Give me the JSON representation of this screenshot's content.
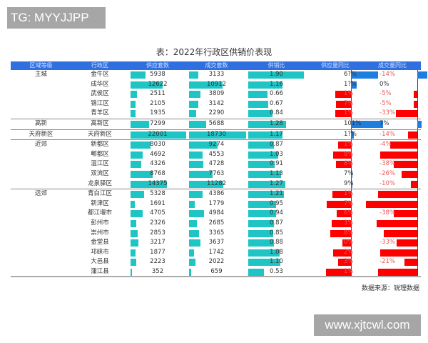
{
  "watermarks": {
    "top": "TG: MYYJJPP",
    "bottom": "www.xjtcwl.com"
  },
  "title": "表：2022年行政区供销价表现",
  "source": "数据来源：锐理数据",
  "colors": {
    "header_bg": "#2f6fe0",
    "teal_bar": "#1fc4c4",
    "blue_bar": "#1e7ee0",
    "red_bar": "#ff0000"
  },
  "headers": {
    "region": "区域等级",
    "district": "行政区",
    "supply": "供应套数",
    "deal": "成交套数",
    "ratio": "供销比",
    "supply_yoy": "供应量同比",
    "deal_yoy": "成交量同比"
  },
  "chart_data": {
    "type": "table",
    "title": "表：2022年行政区供销价表现",
    "columns": [
      "区域等级",
      "行政区",
      "供应套数",
      "成交套数",
      "供销比",
      "供应量同比",
      "成交量同比"
    ],
    "rows": [
      {
        "region": "主城",
        "district": "金牛区",
        "supply": 5938,
        "deal": 3133,
        "ratio": "1.90",
        "supply_yoy": "6?%",
        "deal_yoy": "-14%",
        "syoy_w": 38,
        "dyoy_w": 14
      },
      {
        "region": "",
        "district": "成华区",
        "supply": 12622,
        "deal": 10912,
        "ratio": "1.16",
        "supply_yoy": "1?%",
        "deal_yoy": "0%",
        "syoy_w": 8,
        "dyoy_w": 0
      },
      {
        "region": "",
        "district": "武侯区",
        "supply": 2511,
        "deal": 3809,
        "ratio": "0.66",
        "supply_yoy": "-?1%",
        "deal_yoy": "-5%",
        "syoy_w": -22,
        "dyoy_w": -5
      },
      {
        "region": "",
        "district": "锦江区",
        "supply": 2105,
        "deal": 3142,
        "ratio": "0.67",
        "supply_yoy": "-?7%",
        "deal_yoy": "-5%",
        "syoy_w": -21,
        "dyoy_w": -5
      },
      {
        "region": "",
        "district": "青羊区",
        "supply": 1935,
        "deal": 2290,
        "ratio": "0.84",
        "supply_yoy": "-?1%",
        "deal_yoy": "-33%",
        "syoy_w": -22,
        "dyoy_w": -30
      },
      {
        "region": "高新",
        "district": "高新区",
        "supply": 7299,
        "deal": 5688,
        "ratio": "1.28",
        "supply_yoy": "101%",
        "deal_yoy": "7%",
        "syoy_w": 45,
        "dyoy_w": 6,
        "sep": true
      },
      {
        "region": "天府新区",
        "district": "天府新区",
        "supply": 22001,
        "deal": 18730,
        "ratio": "1.17",
        "supply_yoy": "1?%",
        "deal_yoy": "-14%",
        "syoy_w": 4,
        "dyoy_w": -13,
        "sep": true
      },
      {
        "region": "近郊",
        "district": "新都区",
        "supply": 8030,
        "deal": 9274,
        "ratio": "0.87",
        "supply_yoy": "-?1%",
        "deal_yoy": "-4?%",
        "syoy_w": -18,
        "dyoy_w": -38,
        "sep": true
      },
      {
        "region": "",
        "district": "郫都区",
        "supply": 4692,
        "deal": 4553,
        "ratio": "1.03",
        "supply_yoy": "-?8%",
        "deal_yoy": "-??%",
        "syoy_w": -25,
        "dyoy_w": -52
      },
      {
        "region": "",
        "district": "温江区",
        "supply": 4326,
        "deal": 4728,
        "ratio": "0.91",
        "supply_yoy": "-?8%",
        "deal_yoy": "-38%",
        "syoy_w": -21,
        "dyoy_w": -33
      },
      {
        "region": "",
        "district": "双流区",
        "supply": 8768,
        "deal": 7763,
        "ratio": "1.13",
        "supply_yoy": "7%",
        "deal_yoy": "-26%",
        "syoy_w": 2,
        "dyoy_w": -22
      },
      {
        "region": "",
        "district": "龙泉驿区",
        "supply": 14375,
        "deal": 11282,
        "ratio": "1.27",
        "supply_yoy": "9%",
        "deal_yoy": "-10%",
        "syoy_w": 2,
        "dyoy_w": -9
      },
      {
        "region": "远郊",
        "district": "青白江区",
        "supply": 5328,
        "deal": 4386,
        "ratio": "1.21",
        "supply_yoy": "-?1%",
        "deal_yoy": "-??%",
        "syoy_w": -26,
        "dyoy_w": -55,
        "sep": true
      },
      {
        "region": "",
        "district": "新津区",
        "supply": 1691,
        "deal": 1779,
        "ratio": "0.95",
        "supply_yoy": "-?7%",
        "deal_yoy": "-??%",
        "syoy_w": -34,
        "dyoy_w": -72
      },
      {
        "region": "",
        "district": "都江堰市",
        "supply": 4705,
        "deal": 4984,
        "ratio": "0.94",
        "supply_yoy": "-?6%",
        "deal_yoy": "-38%",
        "syoy_w": -20,
        "dyoy_w": -33
      },
      {
        "region": "",
        "district": "彭州市",
        "supply": 2326,
        "deal": 2685,
        "ratio": "0.87",
        "supply_yoy": "-?3%",
        "deal_yoy": "-??%",
        "syoy_w": -27,
        "dyoy_w": -57
      },
      {
        "region": "",
        "district": "崇州市",
        "supply": 2853,
        "deal": 3365,
        "ratio": "0.85",
        "supply_yoy": "-?8%",
        "deal_yoy": "-??%",
        "syoy_w": -29,
        "dyoy_w": -47
      },
      {
        "region": "",
        "district": "金堂县",
        "supply": 3217,
        "deal": 3637,
        "ratio": "0.88",
        "supply_yoy": "-?0%",
        "deal_yoy": "-33%",
        "syoy_w": -12,
        "dyoy_w": -29
      },
      {
        "region": "",
        "district": "邛崃市",
        "supply": 1877,
        "deal": 1742,
        "ratio": "1.08",
        "supply_yoy": "-?2%",
        "deal_yoy": "-??%",
        "syoy_w": -25,
        "dyoy_w": -52
      },
      {
        "region": "",
        "district": "大邑县",
        "supply": 2223,
        "deal": 2022,
        "ratio": "1.10",
        "supply_yoy": "-?3%",
        "deal_yoy": "-21%",
        "syoy_w": -18,
        "dyoy_w": -18
      },
      {
        "region": "",
        "district": "蒲江县",
        "supply": 352,
        "deal": 659,
        "ratio": "0.53",
        "supply_yoy": "-?1%",
        "deal_yoy": "-??%",
        "syoy_w": -35,
        "dyoy_w": -55
      }
    ],
    "supply_max": 22001,
    "deal_max": 18730,
    "ratio_max": 1.9
  }
}
